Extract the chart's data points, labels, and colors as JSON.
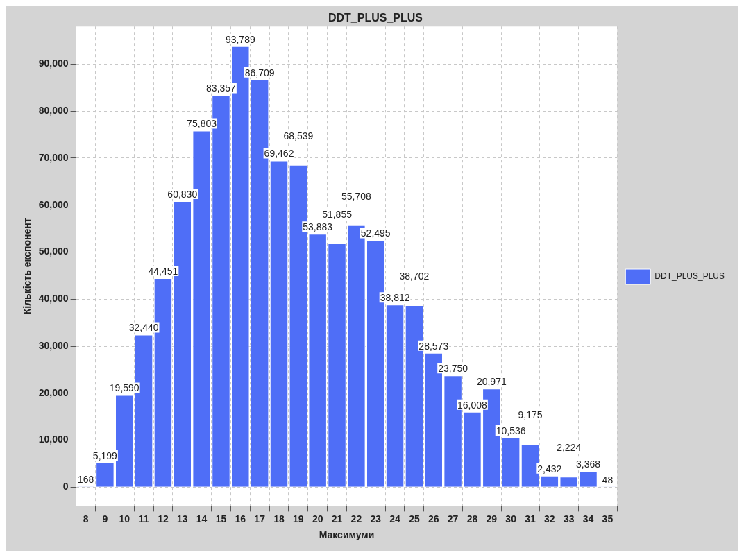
{
  "chart_data": {
    "type": "bar",
    "title": "DDT_PLUS_PLUS",
    "xlabel": "Максимуми",
    "ylabel": "Кількість експонент",
    "categories": [
      "8",
      "9",
      "10",
      "11",
      "12",
      "13",
      "14",
      "15",
      "16",
      "17",
      "18",
      "19",
      "20",
      "21",
      "22",
      "23",
      "24",
      "25",
      "26",
      "27",
      "28",
      "29",
      "30",
      "31",
      "32",
      "33",
      "34",
      "35"
    ],
    "series": [
      {
        "name": "DDT_PLUS_PLUS",
        "color": "#4f6ef7",
        "values": [
          168,
          5199,
          19590,
          32440,
          44451,
          60830,
          75803,
          83357,
          93789,
          86709,
          69462,
          68539,
          53883,
          51855,
          55708,
          52495,
          38812,
          38702,
          28573,
          23750,
          16008,
          20971,
          10536,
          9175,
          2432,
          2224,
          3368,
          48
        ],
        "value_labels": [
          "168",
          "5,199",
          "19,590",
          "32,440",
          "44,451",
          "60,830",
          "75,803",
          "83,357",
          "93,789",
          "86,709",
          "69,462",
          "68,539",
          "53,883",
          "51,855",
          "55,708",
          "52,495",
          "38,812",
          "38,702",
          "28,573",
          "23,750",
          "16,008",
          "20,971",
          "10,536",
          "9,175",
          "2,432",
          "2,224",
          "3,368",
          "48"
        ]
      }
    ],
    "ylim": [
      -4000,
      98000
    ],
    "yticks": [
      {
        "value": 0,
        "label": "0"
      },
      {
        "value": 10000,
        "label": "10,000"
      },
      {
        "value": 20000,
        "label": "20,000"
      },
      {
        "value": 30000,
        "label": "30,000"
      },
      {
        "value": 40000,
        "label": "40,000"
      },
      {
        "value": 50000,
        "label": "50,000"
      },
      {
        "value": 60000,
        "label": "60,000"
      },
      {
        "value": 70000,
        "label": "70,000"
      },
      {
        "value": 80000,
        "label": "80,000"
      },
      {
        "value": 90000,
        "label": "90,000"
      }
    ],
    "grid": true,
    "legend": "right"
  }
}
